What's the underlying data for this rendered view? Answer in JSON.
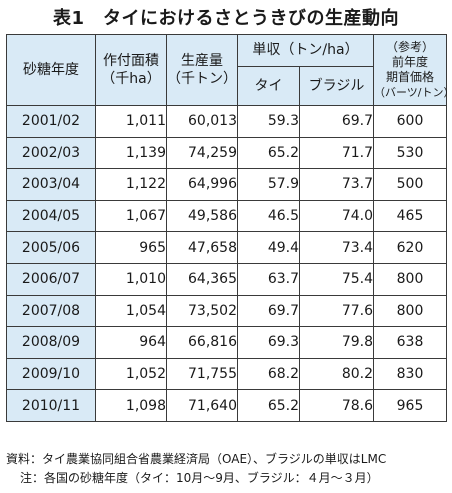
{
  "title": "表1　タイにおけるさとうきびの生産動向",
  "headers": {
    "year": "砂糖年度",
    "area": [
      "作付面積",
      "（千ha）"
    ],
    "production": [
      "生産量",
      "（千トン）"
    ],
    "yield": "単収（トン/ha）",
    "yield_thai": "タイ",
    "yield_brazil": "ブラジル",
    "price": [
      "（参考）",
      "前年度",
      "期首価格",
      "（バーツ/トン）"
    ]
  },
  "rows": [
    {
      "year": "2001/02",
      "area": "1,011",
      "production": "60,013",
      "thai": "59.3",
      "brazil": "69.7",
      "price": "600"
    },
    {
      "year": "2002/03",
      "area": "1,139",
      "production": "74,259",
      "thai": "65.2",
      "brazil": "71.7",
      "price": "530"
    },
    {
      "year": "2003/04",
      "area": "1,122",
      "production": "64,996",
      "thai": "57.9",
      "brazil": "73.7",
      "price": "500"
    },
    {
      "year": "2004/05",
      "area": "1,067",
      "production": "49,586",
      "thai": "46.5",
      "brazil": "74.0",
      "price": "465"
    },
    {
      "year": "2005/06",
      "area": "965",
      "production": "47,658",
      "thai": "49.4",
      "brazil": "73.4",
      "price": "620"
    },
    {
      "year": "2006/07",
      "area": "1,010",
      "production": "64,365",
      "thai": "63.7",
      "brazil": "75.4",
      "price": "800"
    },
    {
      "year": "2007/08",
      "area": "1,054",
      "production": "73,502",
      "thai": "69.7",
      "brazil": "77.6",
      "price": "800"
    },
    {
      "year": "2008/09",
      "area": "964",
      "production": "66,816",
      "thai": "69.3",
      "brazil": "79.8",
      "price": "638"
    },
    {
      "year": "2009/10",
      "area": "1,052",
      "production": "71,755",
      "thai": "68.2",
      "brazil": "80.2",
      "price": "830"
    },
    {
      "year": "2010/11",
      "area": "1,098",
      "production": "71,640",
      "thai": "65.2",
      "brazil": "78.6",
      "price": "965"
    }
  ],
  "notes": {
    "source": "資料：タイ農業協同組合省農業経済局（OAE）、ブラジルの単収はLMC",
    "note": "注：各国の砂糖年度（タイ：10月～9月、ブラジル：４月～３月）"
  }
}
